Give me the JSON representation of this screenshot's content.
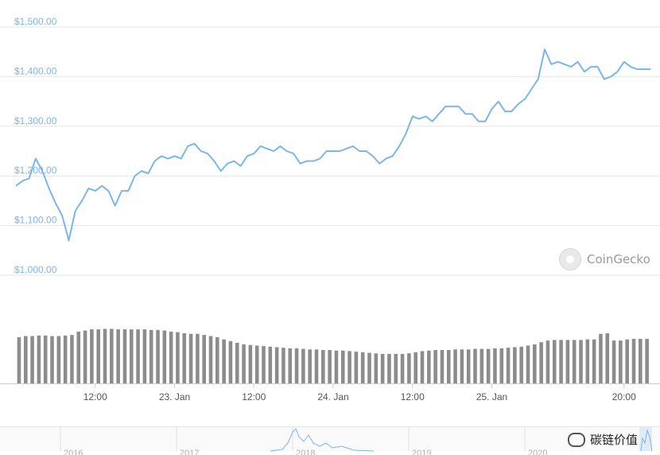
{
  "chart_data": {
    "type": "line",
    "title": "",
    "xlabel": "",
    "ylabel": "",
    "ylim": [
      1000,
      1500
    ],
    "y_ticks": [
      "$1,500.00",
      "$1,400.00",
      "$1,300.00",
      "$1,200.00",
      "$1,100.00",
      "$1,000.00"
    ],
    "y_tick_values": [
      1500,
      1400,
      1300,
      1200,
      1100,
      1000
    ],
    "x_ticks": [
      "12:00",
      "23. Jan",
      "12:00",
      "24. Jan",
      "12:00",
      "25. Jan",
      "20:00"
    ],
    "x_tick_hours": [
      12,
      24,
      36,
      48,
      60,
      72,
      92
    ],
    "x_range_hours": [
      0,
      96
    ],
    "series": [
      {
        "color": "#7cb5ec",
        "x_hours": [
          0,
          1,
          2,
          3,
          4,
          5,
          6,
          7,
          8,
          9,
          10,
          11,
          12,
          13,
          14,
          15,
          16,
          17,
          18,
          19,
          20,
          21,
          22,
          23,
          24,
          25,
          26,
          27,
          28,
          29,
          30,
          31,
          32,
          33,
          34,
          35,
          36,
          37,
          38,
          39,
          40,
          41,
          42,
          43,
          44,
          45,
          46,
          47,
          48,
          49,
          50,
          51,
          52,
          53,
          54,
          55,
          56,
          57,
          58,
          59,
          60,
          61,
          62,
          63,
          64,
          65,
          66,
          67,
          68,
          69,
          70,
          71,
          72,
          73,
          74,
          75,
          76,
          77,
          78,
          79,
          80,
          81,
          82,
          83,
          84,
          85,
          86,
          87,
          88,
          89,
          90,
          91,
          92,
          93,
          94,
          95,
          96
        ],
        "values": [
          1180,
          1190,
          1195,
          1235,
          1210,
          1175,
          1145,
          1120,
          1070,
          1130,
          1150,
          1175,
          1170,
          1180,
          1170,
          1140,
          1170,
          1170,
          1200,
          1210,
          1205,
          1230,
          1240,
          1235,
          1240,
          1235,
          1260,
          1265,
          1250,
          1245,
          1230,
          1210,
          1225,
          1230,
          1220,
          1240,
          1245,
          1260,
          1255,
          1250,
          1260,
          1250,
          1245,
          1225,
          1230,
          1230,
          1235,
          1250,
          1250,
          1250,
          1255,
          1260,
          1250,
          1250,
          1240,
          1225,
          1235,
          1240,
          1260,
          1285,
          1320,
          1315,
          1320,
          1310,
          1325,
          1340,
          1340,
          1340,
          1325,
          1325,
          1310,
          1310,
          1335,
          1350,
          1330,
          1330,
          1345,
          1355,
          1375,
          1395,
          1455,
          1425,
          1430,
          1425,
          1420,
          1430,
          1410,
          1420,
          1420,
          1395,
          1400,
          1410,
          1430,
          1420,
          1415,
          1415,
          1415
        ]
      }
    ],
    "volume_relative": [
      0.83,
      0.85,
      0.85,
      0.86,
      0.86,
      0.85,
      0.85,
      0.86,
      0.87,
      0.93,
      0.95,
      0.97,
      0.97,
      0.98,
      0.98,
      0.97,
      0.97,
      0.97,
      0.97,
      0.97,
      0.96,
      0.96,
      0.95,
      0.93,
      0.92,
      0.9,
      0.89,
      0.89,
      0.87,
      0.85,
      0.83,
      0.79,
      0.76,
      0.73,
      0.7,
      0.69,
      0.68,
      0.67,
      0.66,
      0.65,
      0.64,
      0.63,
      0.63,
      0.62,
      0.61,
      0.61,
      0.6,
      0.6,
      0.59,
      0.59,
      0.58,
      0.57,
      0.56,
      0.55,
      0.54,
      0.53,
      0.53,
      0.53,
      0.53,
      0.54,
      0.56,
      0.58,
      0.59,
      0.6,
      0.6,
      0.6,
      0.61,
      0.61,
      0.61,
      0.62,
      0.62,
      0.62,
      0.63,
      0.63,
      0.64,
      0.65,
      0.66,
      0.68,
      0.7,
      0.74,
      0.77,
      0.78,
      0.78,
      0.78,
      0.78,
      0.78,
      0.79,
      0.79,
      0.89,
      0.9,
      0.77,
      0.77,
      0.79,
      0.8,
      0.8,
      0.8
    ]
  },
  "watermark": {
    "text": "CoinGecko"
  },
  "navigator": {
    "labels": [
      "2016",
      "2017",
      "2018",
      "2019",
      "2020"
    ]
  },
  "overlay": {
    "wechat_text": "碳链价值"
  }
}
